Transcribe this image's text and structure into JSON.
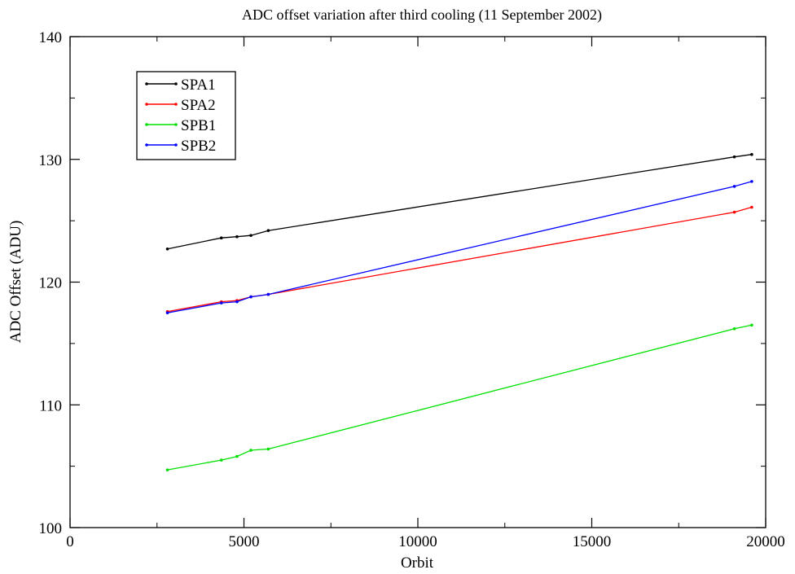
{
  "chart_data": {
    "type": "line",
    "title": "ADC offset variation after third cooling (11 September 2002)",
    "xlabel": "Orbit",
    "ylabel": "ADC Offset (ADU)",
    "xlim": [
      0,
      20000
    ],
    "ylim": [
      100,
      140
    ],
    "xticks": [
      0,
      5000,
      10000,
      15000,
      20000
    ],
    "yticks": [
      100,
      110,
      120,
      130,
      140
    ],
    "xtick_labels": [
      "0",
      "5000",
      "10000",
      "15000",
      "20000"
    ],
    "ytick_labels": [
      "100",
      "110",
      "120",
      "130",
      "140"
    ],
    "grid": false,
    "legend_position": "top-left",
    "series": [
      {
        "name": "SPA1",
        "color": "#000000",
        "x": [
          2800,
          4350,
          4800,
          5200,
          5700,
          19100,
          19600
        ],
        "y": [
          122.7,
          123.6,
          123.7,
          123.8,
          124.2,
          130.2,
          130.4
        ]
      },
      {
        "name": "SPA2",
        "color": "#ff0000",
        "x": [
          2800,
          4350,
          4800,
          5200,
          5700,
          19100,
          19600
        ],
        "y": [
          117.6,
          118.4,
          118.5,
          118.8,
          119.0,
          125.7,
          126.1
        ]
      },
      {
        "name": "SPB1",
        "color": "#00e000",
        "x": [
          2800,
          4350,
          4800,
          5200,
          5700,
          19100,
          19600
        ],
        "y": [
          104.7,
          105.5,
          105.8,
          106.3,
          106.4,
          116.2,
          116.5
        ]
      },
      {
        "name": "SPB2",
        "color": "#0000ff",
        "x": [
          2800,
          4350,
          4800,
          5200,
          5700,
          19100,
          19600
        ],
        "y": [
          117.5,
          118.3,
          118.4,
          118.8,
          119.0,
          127.8,
          128.2
        ]
      }
    ]
  }
}
